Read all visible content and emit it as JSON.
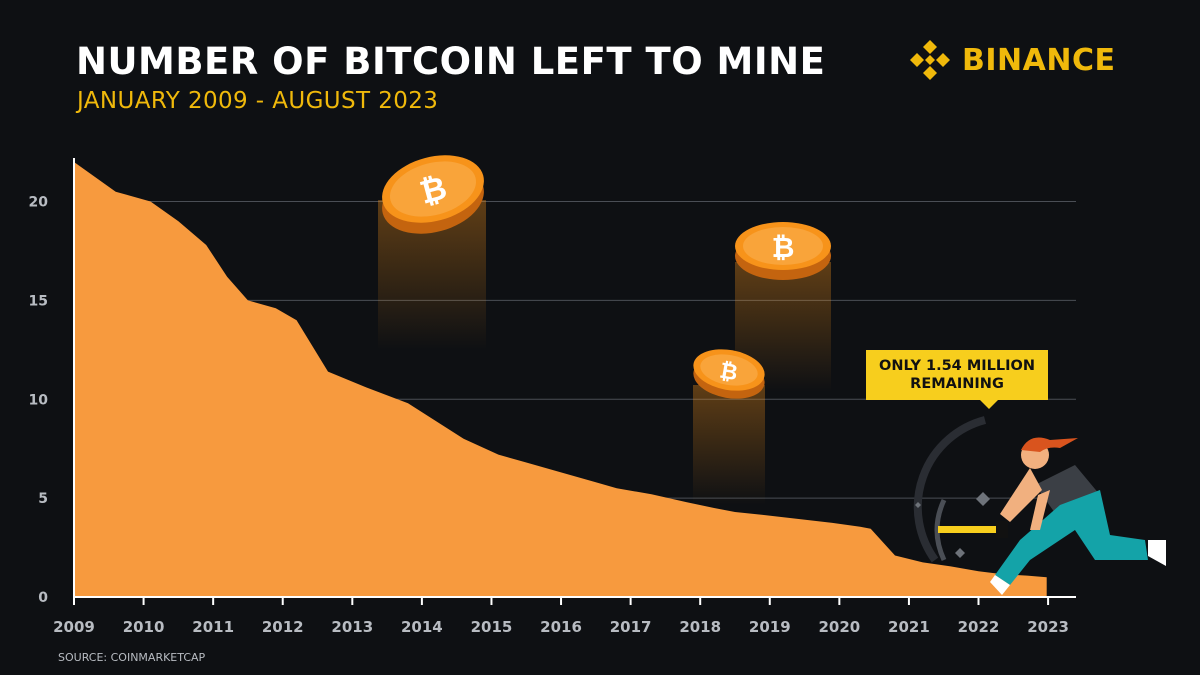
{
  "header": {
    "title": "NUMBER OF BITCOIN LEFT TO MINE",
    "subtitle": "JANUARY 2009 - AUGUST 2023"
  },
  "brand": {
    "name": "BINANCE",
    "icon": "binance-logo-icon"
  },
  "callout": {
    "line1": "ONLY 1.54 MILLION",
    "line2": "REMAINING"
  },
  "source": "SOURCE: COINMARKETCAP",
  "colors": {
    "area": "#f79a3e",
    "accent": "#f0b90b",
    "callout": "#f7ce1d",
    "background": "#0e1013",
    "coin": "#f7931a"
  },
  "chart_data": {
    "type": "area",
    "title": "NUMBER OF BITCOIN LEFT TO MINE",
    "subtitle": "JANUARY 2009 - AUGUST 2023",
    "ylabel": "",
    "xlabel": "",
    "ylim": [
      0,
      22
    ],
    "xlim": [
      2009,
      2023.2
    ],
    "yticks": [
      0,
      5,
      10,
      15,
      20
    ],
    "xticks": [
      2009,
      2010,
      2011,
      2012,
      2013,
      2014,
      2015,
      2016,
      2017,
      2018,
      2019,
      2020,
      2021,
      2022,
      2023
    ],
    "grid": true,
    "series": [
      {
        "x": [
          2009.0,
          2009.6,
          2010.1,
          2010.5,
          2010.9,
          2011.2,
          2011.5,
          2011.9,
          2012.2,
          2012.65,
          2013.2,
          2013.8,
          2014.2,
          2014.6,
          2015.1,
          2015.5,
          2016.0,
          2016.5,
          2016.8,
          2017.3,
          2017.8,
          2018.2,
          2018.5,
          2018.9,
          2019.4,
          2019.9,
          2020.3,
          2020.45,
          2020.8,
          2021.2,
          2021.6,
          2022.0,
          2022.35,
          2022.7,
          2022.98
        ],
        "y": [
          22.0,
          20.5,
          20.0,
          19.0,
          17.8,
          16.2,
          15.0,
          14.6,
          14.0,
          11.4,
          10.6,
          9.8,
          8.9,
          8.0,
          7.2,
          6.8,
          6.3,
          5.8,
          5.5,
          5.2,
          4.8,
          4.5,
          4.3,
          4.15,
          3.95,
          3.75,
          3.55,
          3.45,
          2.1,
          1.75,
          1.55,
          1.3,
          1.15,
          1.08,
          1.0
        ]
      }
    ],
    "annotations": [
      "ONLY 1.54 MILLION REMAINING"
    ]
  }
}
